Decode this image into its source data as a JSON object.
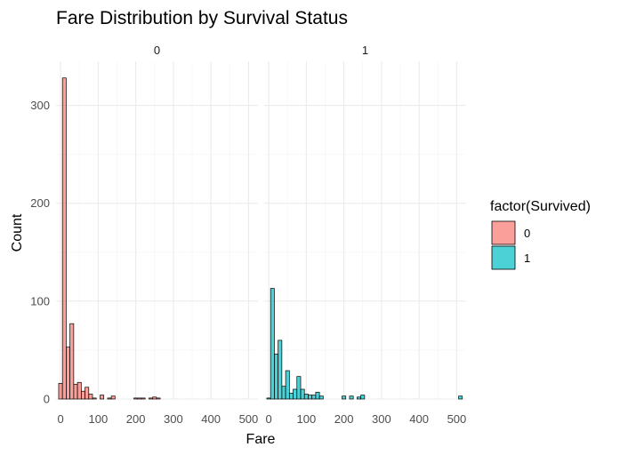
{
  "chart_data": {
    "type": "bar",
    "title": "Fare Distribution by Survival Status",
    "xlabel": "Fare",
    "ylabel": "Count",
    "xlim": [
      -12,
      525
    ],
    "ylim": [
      0,
      345
    ],
    "x_ticks": [
      0,
      100,
      200,
      300,
      400,
      500
    ],
    "y_ticks": [
      0,
      100,
      200,
      300
    ],
    "bin_width": 10,
    "grid": true,
    "legend": {
      "title": "factor(Survived)",
      "position": "right",
      "entries": [
        {
          "label": "0",
          "color": "#F8766D"
        },
        {
          "label": "1",
          "color": "#00BFC4"
        }
      ]
    },
    "panels": [
      {
        "strip_label": "0",
        "color": "#F8766D",
        "bins_x": [
          0,
          10,
          20,
          30,
          40,
          50,
          60,
          70,
          80,
          90,
          100,
          110,
          120,
          130,
          140,
          150,
          160,
          170,
          180,
          190,
          200,
          210,
          220,
          230,
          240,
          250,
          260,
          270,
          280,
          290,
          300,
          310,
          320,
          330,
          340,
          350,
          360,
          370,
          380,
          390,
          400,
          410,
          420,
          430,
          440,
          450,
          460,
          470,
          480,
          490,
          500,
          510
        ],
        "counts": [
          16,
          328,
          53,
          77,
          15,
          17,
          8,
          12,
          5,
          1,
          0,
          4,
          0,
          1,
          3,
          0,
          0,
          0,
          0,
          0,
          1,
          1,
          1,
          0,
          1,
          2,
          1,
          0,
          0,
          0,
          0,
          0,
          0,
          0,
          0,
          0,
          0,
          0,
          0,
          0,
          0,
          0,
          0,
          0,
          0,
          0,
          0,
          0,
          0,
          0,
          0,
          0
        ]
      },
      {
        "strip_label": "1",
        "color": "#00BFC4",
        "bins_x": [
          0,
          10,
          20,
          30,
          40,
          50,
          60,
          70,
          80,
          90,
          100,
          110,
          120,
          130,
          140,
          150,
          160,
          170,
          180,
          190,
          200,
          210,
          220,
          230,
          240,
          250,
          260,
          270,
          280,
          290,
          300,
          310,
          320,
          330,
          340,
          350,
          360,
          370,
          380,
          390,
          400,
          410,
          420,
          430,
          440,
          450,
          460,
          470,
          480,
          490,
          500,
          510
        ],
        "counts": [
          1,
          113,
          46,
          60,
          13,
          29,
          6,
          10,
          23,
          10,
          5,
          4,
          4,
          7,
          3,
          0,
          0,
          0,
          0,
          0,
          3,
          0,
          3,
          0,
          2,
          4,
          0,
          0,
          0,
          0,
          0,
          0,
          0,
          0,
          0,
          0,
          0,
          0,
          0,
          0,
          0,
          0,
          0,
          0,
          0,
          0,
          0,
          0,
          0,
          0,
          0,
          3
        ]
      }
    ]
  }
}
